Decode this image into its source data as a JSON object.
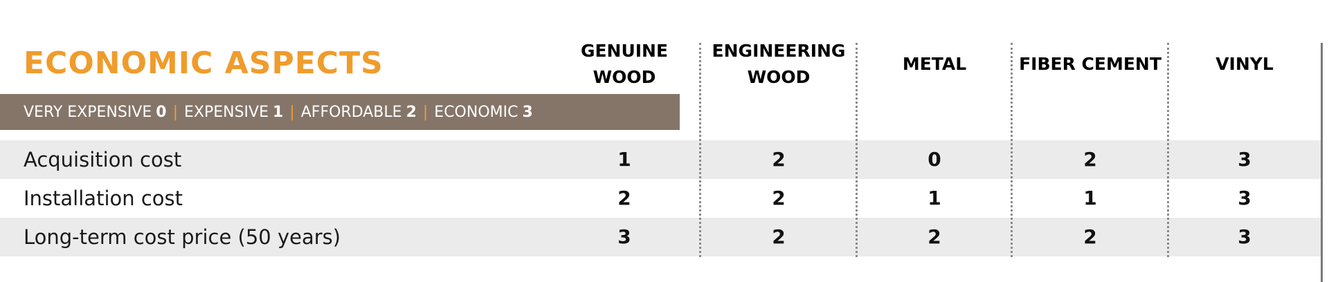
{
  "title": "ECONOMIC ASPECTS",
  "legend": [
    {
      "label": "VERY EXPENSIVE",
      "value": "0"
    },
    {
      "label": "EXPENSIVE",
      "value": "1"
    },
    {
      "label": "AFFORDABLE",
      "value": "2"
    },
    {
      "label": "ECONOMIC",
      "value": "3"
    }
  ],
  "columns": [
    "GENUINE\nWOOD",
    "ENGINEERING\nWOOD",
    "METAL",
    "FIBER CEMENT",
    "VINYL"
  ],
  "rows": [
    {
      "label": "Acquisition cost",
      "values": [
        "1",
        "2",
        "0",
        "2",
        "3"
      ]
    },
    {
      "label": "Installation cost",
      "values": [
        "2",
        "2",
        "1",
        "1",
        "3"
      ]
    },
    {
      "label": "Long-term cost price (50 years)",
      "values": [
        "3",
        "2",
        "2",
        "2",
        "3"
      ]
    }
  ],
  "colors": {
    "title": "#ef9c2c",
    "legend_bar": "#857569",
    "separator": "#ef9c2c",
    "row_shade": "#ebebeb"
  }
}
